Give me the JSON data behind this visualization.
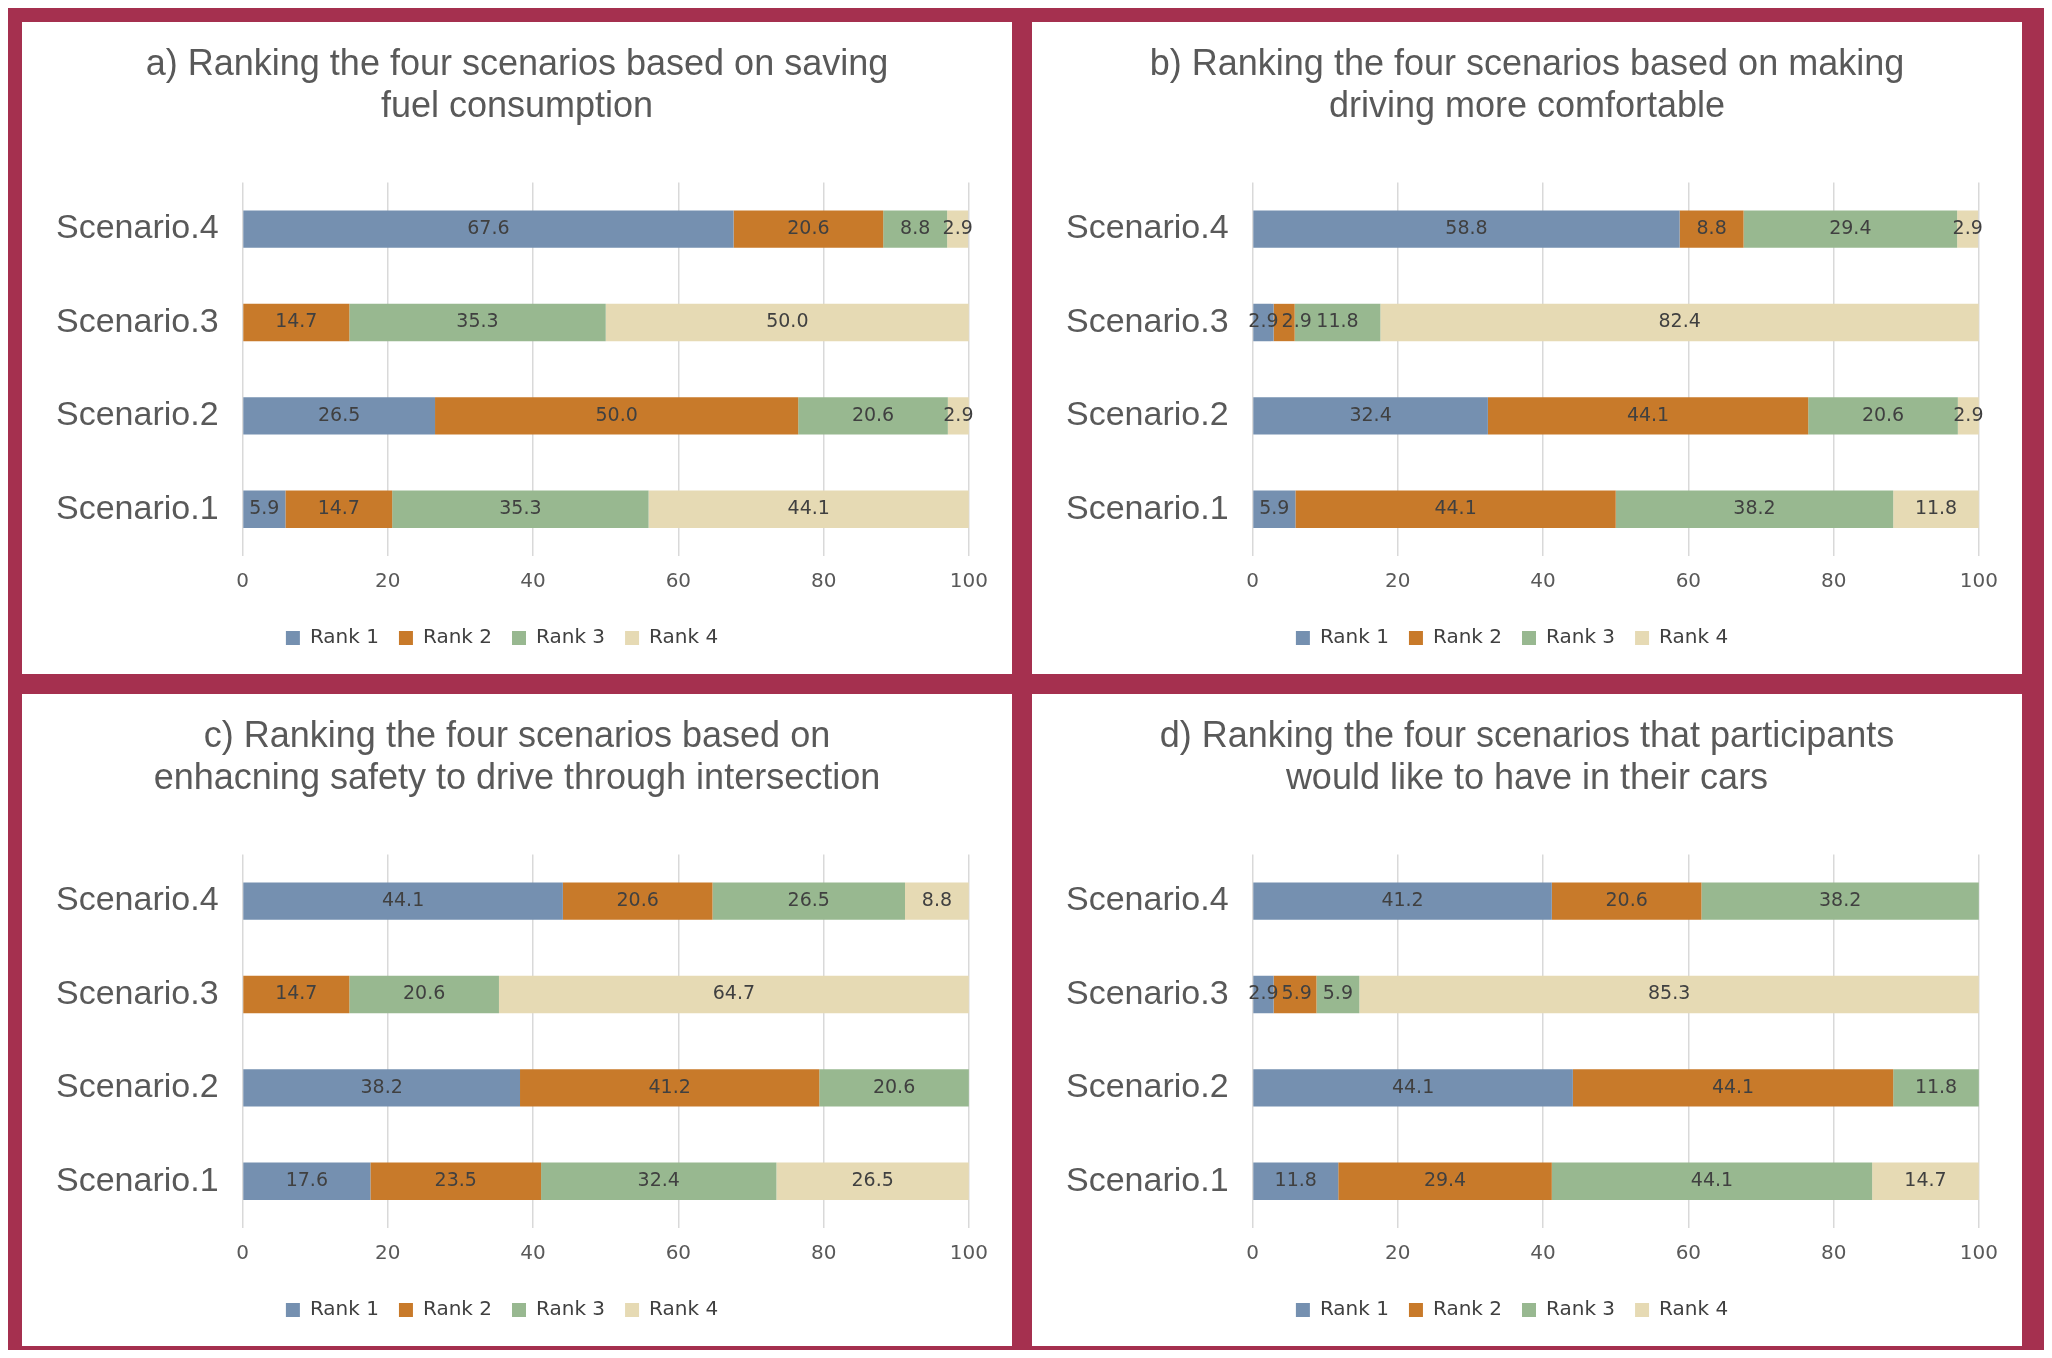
{
  "chart_data": [
    {
      "type": "bar",
      "orientation": "horizontal",
      "stacked": true,
      "title": "a) Ranking the four scenarios based on saving fuel consumption",
      "categories": [
        "Scenario.4",
        "Scenario.3",
        "Scenario.2",
        "Scenario.1"
      ],
      "xlim": [
        0,
        100
      ],
      "xticks": [
        0,
        20,
        40,
        60,
        80,
        100
      ],
      "grid": "x",
      "legend": "bottom",
      "series": [
        {
          "name": "Rank 1",
          "color": "#7590b0",
          "values": [
            67.6,
            null,
            26.5,
            5.9
          ],
          "value_labels": [
            "67.6",
            null,
            "26.5",
            "5.9"
          ]
        },
        {
          "name": "Rank 2",
          "color": "#c87a2a",
          "values": [
            20.6,
            14.7,
            50.0,
            14.7
          ],
          "value_labels": [
            "20.6",
            "14.7",
            "50.0",
            "14.7"
          ]
        },
        {
          "name": "Rank 3",
          "color": "#98b890",
          "values": [
            8.8,
            35.3,
            20.6,
            35.3
          ],
          "value_labels": [
            "8.8",
            "35.3",
            "20.6",
            "35.3"
          ]
        },
        {
          "name": "Rank 4",
          "color": "#e6dab4",
          "values": [
            2.9,
            50.0,
            2.9,
            44.1
          ],
          "value_labels": [
            "2.9",
            "50.0",
            "2.9",
            "44.1"
          ]
        }
      ]
    },
    {
      "type": "bar",
      "orientation": "horizontal",
      "stacked": true,
      "title": "b) Ranking the four scenarios based on making driving more comfortable",
      "categories": [
        "Scenario.4",
        "Scenario.3",
        "Scenario.2",
        "Scenario.1"
      ],
      "xlim": [
        0,
        100
      ],
      "xticks": [
        0,
        20,
        40,
        60,
        80,
        100
      ],
      "grid": "x",
      "legend": "bottom",
      "series": [
        {
          "name": "Rank 1",
          "color": "#7590b0",
          "values": [
            58.8,
            2.9,
            32.4,
            5.9
          ],
          "value_labels": [
            "58.8",
            "2.9",
            "32.4",
            "5.9"
          ]
        },
        {
          "name": "Rank 2",
          "color": "#c87a2a",
          "values": [
            8.8,
            2.9,
            44.1,
            44.1
          ],
          "value_labels": [
            "8.8",
            "2.9",
            "44.1",
            "44.1"
          ]
        },
        {
          "name": "Rank 3",
          "color": "#98b890",
          "values": [
            29.4,
            11.8,
            20.6,
            38.2
          ],
          "value_labels": [
            "29.4",
            "11.8",
            "20.6",
            "38.2"
          ]
        },
        {
          "name": "Rank 4",
          "color": "#e6dab4",
          "values": [
            2.9,
            82.4,
            2.9,
            11.8
          ],
          "value_labels": [
            "2.9",
            "82.4",
            "2.9",
            "11.8"
          ]
        }
      ]
    },
    {
      "type": "bar",
      "orientation": "horizontal",
      "stacked": true,
      "title": "c) Ranking the four scenarios based on enhacning safety to drive through intersection",
      "categories": [
        "Scenario.4",
        "Scenario.3",
        "Scenario.2",
        "Scenario.1"
      ],
      "xlim": [
        0,
        100
      ],
      "xticks": [
        0,
        20,
        40,
        60,
        80,
        100
      ],
      "grid": "x",
      "legend": "bottom",
      "series": [
        {
          "name": "Rank 1",
          "color": "#7590b0",
          "values": [
            44.1,
            null,
            38.2,
            17.6
          ],
          "value_labels": [
            "44.1",
            null,
            "38.2",
            "17.6"
          ]
        },
        {
          "name": "Rank 2",
          "color": "#c87a2a",
          "values": [
            20.6,
            14.7,
            41.2,
            23.5
          ],
          "value_labels": [
            "20.6",
            "14.7",
            "41.2",
            "23.5"
          ]
        },
        {
          "name": "Rank 3",
          "color": "#98b890",
          "values": [
            26.5,
            20.6,
            20.6,
            32.4
          ],
          "value_labels": [
            "26.5",
            "20.6",
            "20.6",
            "32.4"
          ]
        },
        {
          "name": "Rank 4",
          "color": "#e6dab4",
          "values": [
            8.8,
            64.7,
            null,
            26.5
          ],
          "value_labels": [
            "8.8",
            "64.7",
            null,
            "26.5"
          ]
        }
      ]
    },
    {
      "type": "bar",
      "orientation": "horizontal",
      "stacked": true,
      "title": "d) Ranking the four scenarios that participants would like to have in their cars",
      "categories": [
        "Scenario.4",
        "Scenario.3",
        "Scenario.2",
        "Scenario.1"
      ],
      "xlim": [
        0,
        100
      ],
      "xticks": [
        0,
        20,
        40,
        60,
        80,
        100
      ],
      "grid": "x",
      "legend": "bottom",
      "series": [
        {
          "name": "Rank 1",
          "color": "#7590b0",
          "values": [
            41.2,
            2.9,
            44.1,
            11.8
          ],
          "value_labels": [
            "41.2",
            "2.9",
            "44.1",
            "11.8"
          ]
        },
        {
          "name": "Rank 2",
          "color": "#c87a2a",
          "values": [
            20.6,
            5.9,
            44.1,
            29.4
          ],
          "value_labels": [
            "20.6",
            "5.9",
            "44.1",
            "29.4"
          ]
        },
        {
          "name": "Rank 3",
          "color": "#98b890",
          "values": [
            38.2,
            5.9,
            11.8,
            44.1
          ],
          "value_labels": [
            "38.2",
            "5.9",
            "11.8",
            "44.1"
          ]
        },
        {
          "name": "Rank 4",
          "color": "#e6dab4",
          "values": [
            null,
            85.3,
            null,
            14.7
          ],
          "value_labels": [
            null,
            "85.3",
            null,
            "14.7"
          ]
        }
      ]
    }
  ]
}
